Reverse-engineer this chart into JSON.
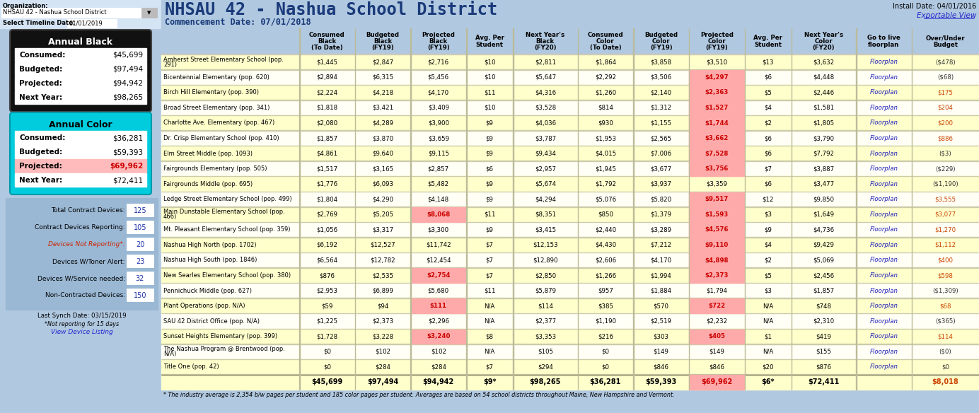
{
  "title": "NHSAU 42 - Nashua School District",
  "commencement": "Commencement Date: 07/01/2018",
  "install_date": "Install Date: 04/01/2016",
  "exportable_view": "Exportable View",
  "org_label": "Organization:",
  "org_value": "NHSAU 42 - Nashua School District",
  "timeline_label": "Select Timeline Date:",
  "timeline_value": "01/01/2019",
  "annual_black": {
    "title": "Annual Black",
    "rows": [
      [
        "Consumed:",
        "$45,699"
      ],
      [
        "Budgeted:",
        "$97,494"
      ],
      [
        "Projected:",
        "$94,942"
      ],
      [
        "Next Year:",
        "$98,265"
      ]
    ]
  },
  "annual_color": {
    "title": "Annual Color",
    "rows": [
      [
        "Consumed:",
        "$36,281"
      ],
      [
        "Budgeted:",
        "$59,393"
      ],
      [
        "Projected:",
        "$69,962"
      ],
      [
        "Next Year:",
        "$72,411"
      ]
    ],
    "highlight_row": 2
  },
  "device_stats": [
    [
      "Total Contract Devices:",
      "125",
      false
    ],
    [
      "Contract Devices Reporting:",
      "105",
      false
    ],
    [
      "Devices Not Reporting*:",
      "20",
      true
    ],
    [
      "Devices W/Toner Alert:",
      "23",
      false
    ],
    [
      "Devices W/Service needed:",
      "32",
      false
    ],
    [
      "Non-Contracted Devices:",
      "150",
      false
    ]
  ],
  "last_synch": "Last Synch Date: 03/15/2019",
  "not_reporting_note": "*Not reporting for 15 days",
  "view_device_listing": "View Device Listing",
  "col_headers": [
    "Consumed\nBlack\n(To Date)",
    "Budgeted\nBlack\n(FY19)",
    "Projected\nBlack\n(FY19)",
    "Avg. Per\nStudent",
    "Next Year's\nBlack\n(FY20)",
    "Consumed\nColor\n(To Date)",
    "Budgeted\nColor\n(FY19)",
    "Projected\nColor\n(FY19)",
    "Avg. Per\nStudent",
    "Next Year's\nColor\n(FY20)",
    "Go to live\nfloorplan",
    "Over/Under\nBudget"
  ],
  "rows": [
    {
      "name": "Amherst Street Elementary School (pop.\n291)",
      "data": [
        "$1,445",
        "$2,847",
        "$2,716",
        "$10",
        "$2,811",
        "$1,864",
        "$3,858",
        "$3,510",
        "$13",
        "$3,632",
        "Floorplan",
        "($478)"
      ],
      "highlights": [
        false,
        false,
        false,
        false,
        false,
        false,
        false,
        false,
        false,
        false,
        false,
        false
      ]
    },
    {
      "name": "Bicentennial Elementary (pop. 620)",
      "data": [
        "$2,894",
        "$6,315",
        "$5,456",
        "$10",
        "$5,647",
        "$2,292",
        "$3,506",
        "$4,297",
        "$6",
        "$4,448",
        "Floorplan",
        "($68)"
      ],
      "highlights": [
        false,
        false,
        false,
        false,
        false,
        false,
        false,
        true,
        false,
        false,
        false,
        false
      ]
    },
    {
      "name": "Birch Hill Elementary (pop. 390)",
      "data": [
        "$2,224",
        "$4,218",
        "$4,170",
        "$11",
        "$4,316",
        "$1,260",
        "$2,140",
        "$2,363",
        "$5",
        "$2,446",
        "Floorplan",
        "$175"
      ],
      "highlights": [
        false,
        false,
        false,
        false,
        false,
        false,
        false,
        true,
        false,
        false,
        false,
        false
      ]
    },
    {
      "name": "Broad Street Elementary (pop. 341)",
      "data": [
        "$1,818",
        "$3,421",
        "$3,409",
        "$10",
        "$3,528",
        "$814",
        "$1,312",
        "$1,527",
        "$4",
        "$1,581",
        "Floorplan",
        "$204"
      ],
      "highlights": [
        false,
        false,
        false,
        false,
        false,
        false,
        false,
        true,
        false,
        false,
        false,
        false
      ]
    },
    {
      "name": "Charlotte Ave. Elementary (pop. 467)",
      "data": [
        "$2,080",
        "$4,289",
        "$3,900",
        "$9",
        "$4,036",
        "$930",
        "$1,155",
        "$1,744",
        "$2",
        "$1,805",
        "Floorplan",
        "$200"
      ],
      "highlights": [
        false,
        false,
        false,
        false,
        false,
        false,
        false,
        true,
        false,
        false,
        false,
        false
      ]
    },
    {
      "name": "Dr. Crisp Elementary School (pop. 410)",
      "data": [
        "$1,857",
        "$3,870",
        "$3,659",
        "$9",
        "$3,787",
        "$1,953",
        "$2,565",
        "$3,662",
        "$6",
        "$3,790",
        "Floorplan",
        "$886"
      ],
      "highlights": [
        false,
        false,
        false,
        false,
        false,
        false,
        false,
        true,
        false,
        false,
        false,
        false
      ]
    },
    {
      "name": "Elm Street Middle (pop. 1093)",
      "data": [
        "$4,861",
        "$9,640",
        "$9,115",
        "$9",
        "$9,434",
        "$4,015",
        "$7,006",
        "$7,528",
        "$6",
        "$7,792",
        "Floorplan",
        "($3)"
      ],
      "highlights": [
        false,
        false,
        false,
        false,
        false,
        false,
        false,
        true,
        false,
        false,
        false,
        false
      ]
    },
    {
      "name": "Fairgrounds Elementary (pop. 505)",
      "data": [
        "$1,517",
        "$3,165",
        "$2,857",
        "$6",
        "$2,957",
        "$1,945",
        "$3,677",
        "$3,756",
        "$7",
        "$3,887",
        "Floorplan",
        "($229)"
      ],
      "highlights": [
        false,
        false,
        false,
        false,
        false,
        false,
        false,
        true,
        false,
        false,
        false,
        false
      ]
    },
    {
      "name": "Fairgrounds Middle (pop. 695)",
      "data": [
        "$1,776",
        "$6,093",
        "$5,482",
        "$9",
        "$5,674",
        "$1,792",
        "$3,937",
        "$3,359",
        "$6",
        "$3,477",
        "Floorplan",
        "($1,190)"
      ],
      "highlights": [
        false,
        false,
        false,
        false,
        false,
        false,
        false,
        false,
        false,
        false,
        false,
        false
      ]
    },
    {
      "name": "Ledge Street Elementary School (pop. 499)",
      "data": [
        "$1,804",
        "$4,290",
        "$4,148",
        "$9",
        "$4,294",
        "$5,076",
        "$5,820",
        "$9,517",
        "$12",
        "$9,850",
        "Floorplan",
        "$3,555"
      ],
      "highlights": [
        false,
        false,
        false,
        false,
        false,
        false,
        false,
        true,
        false,
        false,
        false,
        false
      ]
    },
    {
      "name": "Main Dunstable Elementary School (pop.\n466)",
      "data": [
        "$2,769",
        "$5,205",
        "$8,068",
        "$11",
        "$8,351",
        "$850",
        "$1,379",
        "$1,593",
        "$3",
        "$1,649",
        "Floorplan",
        "$3,077"
      ],
      "highlights": [
        false,
        false,
        true,
        false,
        false,
        false,
        false,
        true,
        false,
        false,
        false,
        false
      ]
    },
    {
      "name": "Mt. Pleasant Elementary School (pop. 359)",
      "data": [
        "$1,056",
        "$3,317",
        "$3,300",
        "$9",
        "$3,415",
        "$2,440",
        "$3,289",
        "$4,576",
        "$9",
        "$4,736",
        "Floorplan",
        "$1,270"
      ],
      "highlights": [
        false,
        false,
        false,
        false,
        false,
        false,
        false,
        true,
        false,
        false,
        false,
        false
      ]
    },
    {
      "name": "Nashua High North (pop. 1702)",
      "data": [
        "$6,192",
        "$12,527",
        "$11,742",
        "$7",
        "$12,153",
        "$4,430",
        "$7,212",
        "$9,110",
        "$4",
        "$9,429",
        "Floorplan",
        "$1,112"
      ],
      "highlights": [
        false,
        false,
        false,
        false,
        false,
        false,
        false,
        true,
        false,
        false,
        false,
        false
      ]
    },
    {
      "name": "Nashua High South (pop. 1846)",
      "data": [
        "$6,564",
        "$12,782",
        "$12,454",
        "$7",
        "$12,890",
        "$2,606",
        "$4,170",
        "$4,898",
        "$2",
        "$5,069",
        "Floorplan",
        "$400"
      ],
      "highlights": [
        false,
        false,
        false,
        false,
        false,
        false,
        false,
        true,
        false,
        false,
        false,
        false
      ]
    },
    {
      "name": "New Searles Elementary School (pop. 380)",
      "data": [
        "$876",
        "$2,535",
        "$2,754",
        "$7",
        "$2,850",
        "$1,266",
        "$1,994",
        "$2,373",
        "$5",
        "$2,456",
        "Floorplan",
        "$598"
      ],
      "highlights": [
        false,
        false,
        true,
        false,
        false,
        false,
        false,
        true,
        false,
        false,
        false,
        false
      ]
    },
    {
      "name": "Pennichuck Middle (pop. 627)",
      "data": [
        "$2,953",
        "$6,899",
        "$5,680",
        "$11",
        "$5,879",
        "$957",
        "$1,884",
        "$1,794",
        "$3",
        "$1,857",
        "Floorplan",
        "($1,309)"
      ],
      "highlights": [
        false,
        false,
        false,
        false,
        false,
        false,
        false,
        false,
        false,
        false,
        false,
        false
      ]
    },
    {
      "name": "Plant Operations (pop. N/A)",
      "data": [
        "$59",
        "$94",
        "$111",
        "N/A",
        "$114",
        "$385",
        "$570",
        "$722",
        "N/A",
        "$748",
        "Floorplan",
        "$68"
      ],
      "highlights": [
        false,
        false,
        true,
        false,
        false,
        false,
        false,
        true,
        false,
        false,
        false,
        false
      ]
    },
    {
      "name": "SAU 42 District Office (pop. N/A)",
      "data": [
        "$1,225",
        "$2,373",
        "$2,296",
        "N/A",
        "$2,377",
        "$1,190",
        "$2,519",
        "$2,232",
        "N/A",
        "$2,310",
        "Floorplan",
        "($365)"
      ],
      "highlights": [
        false,
        false,
        false,
        false,
        false,
        false,
        false,
        false,
        false,
        false,
        false,
        false
      ]
    },
    {
      "name": "Sunset Heights Elementary (pop. 399)",
      "data": [
        "$1,728",
        "$3,228",
        "$3,240",
        "$8",
        "$3,353",
        "$216",
        "$303",
        "$405",
        "$1",
        "$419",
        "Floorplan",
        "$114"
      ],
      "highlights": [
        false,
        false,
        true,
        false,
        false,
        false,
        false,
        true,
        false,
        false,
        false,
        false
      ]
    },
    {
      "name": "The Nashua Program @ Brentwood (pop.\nN/A)",
      "data": [
        "$0",
        "$102",
        "$102",
        "N/A",
        "$105",
        "$0",
        "$149",
        "$149",
        "N/A",
        "$155",
        "Floorplan",
        "($0)"
      ],
      "highlights": [
        false,
        false,
        false,
        false,
        false,
        false,
        false,
        false,
        false,
        false,
        false,
        false
      ]
    },
    {
      "name": "Title One (pop. 42)",
      "data": [
        "$0",
        "$284",
        "$284",
        "$7",
        "$294",
        "$0",
        "$846",
        "$846",
        "$20",
        "$876",
        "Floorplan",
        "$0"
      ],
      "highlights": [
        false,
        false,
        false,
        false,
        false,
        false,
        false,
        false,
        false,
        false,
        false,
        false
      ]
    }
  ],
  "totals": [
    "$45,699",
    "$97,494",
    "$94,942",
    "$9*",
    "$98,265",
    "$36,281",
    "$59,393",
    "$69,962",
    "$6*",
    "$72,411",
    "",
    "$8,018"
  ],
  "totals_highlights": [
    false,
    false,
    false,
    false,
    false,
    false,
    false,
    true,
    false,
    false,
    false,
    false
  ],
  "footnote": "* The industry average is 2,354 b/w pages per student and 185 color pages per student. Averages are based on 54 school districts throughout Maine, New Hampshire and Vermont.",
  "bg_color": "#b0c8e0",
  "left_panel_bg": "#b0c8e0",
  "table_row_even": "#ffffcc",
  "table_row_odd": "#fffff5",
  "header_bg": "#b0c8e0",
  "black_box_bg": "#111111",
  "color_box_bg": "#00ddee",
  "device_box_bg": "#88aacc",
  "highlight_cell_bg": "#ffaaaa",
  "highlight_text": "#cc0000",
  "floorplan_color": "#2222bb",
  "positive_color": "#cc4400",
  "negative_color": "#333333",
  "total_highlight_bg": "#ffaaaa",
  "total_highlight_text": "#cc0000"
}
